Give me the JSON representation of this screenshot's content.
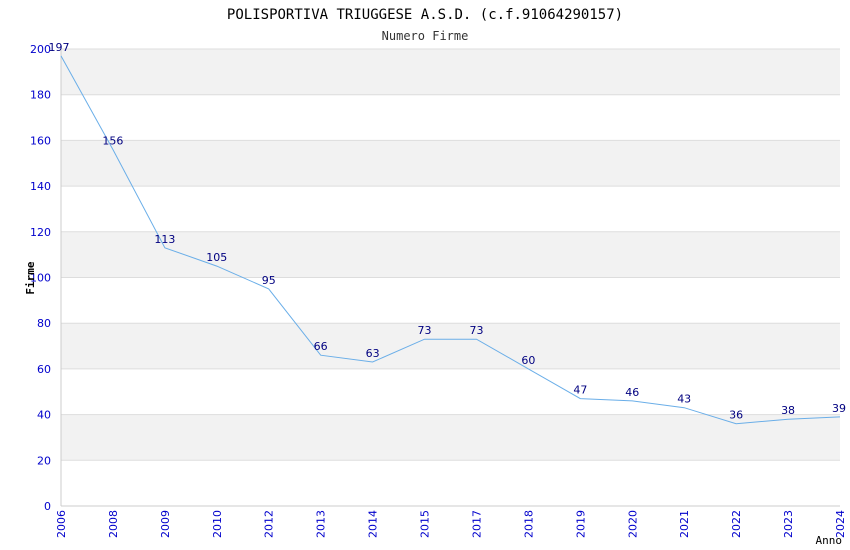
{
  "chart_data": {
    "type": "line",
    "title": "POLISPORTIVA TRIUGGESE A.S.D. (c.f.91064290157)",
    "subtitle": "Numero Firme",
    "xlabel": "Anno",
    "ylabel": "Firme",
    "ylim": [
      0,
      200
    ],
    "yticks": [
      0,
      20,
      40,
      60,
      80,
      100,
      120,
      140,
      160,
      180,
      200
    ],
    "x": [
      "2006",
      "2008",
      "2009",
      "2010",
      "2012",
      "2013",
      "2014",
      "2015",
      "2017",
      "2018",
      "2019",
      "2020",
      "2021",
      "2022",
      "2023",
      "2024"
    ],
    "series": [
      {
        "values": [
          197,
          156,
          113,
          105,
          95,
          66,
          63,
          73,
          73,
          60,
          47,
          46,
          43,
          36,
          38,
          39
        ]
      }
    ],
    "grid": "horizontal bands",
    "colors": {
      "line": "#6aaee8",
      "axis_text": "#0000cc",
      "data_labels": "#000080",
      "band": "#f2f2f2",
      "gridline": "#dddddd"
    }
  }
}
